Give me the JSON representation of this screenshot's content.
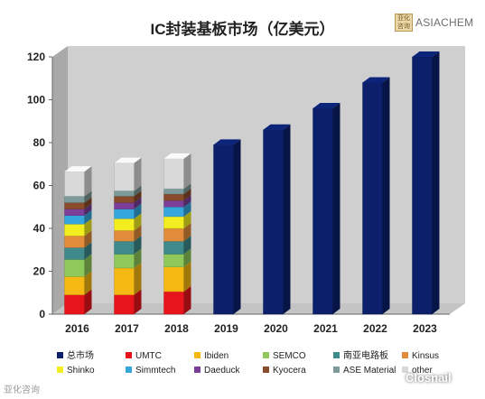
{
  "title": "IC封装基板市场（亿美元）",
  "logo": {
    "seal_text": "亚化咨询",
    "word": "ASIACHEM"
  },
  "watermarks": {
    "left": "亚化咨询",
    "right": "Closnail"
  },
  "chart_data": {
    "type": "bar",
    "stacked": true,
    "title": "IC封装基板市场（亿美元）",
    "categories": [
      "2016",
      "2017",
      "2018",
      "2019",
      "2020",
      "2021",
      "2022",
      "2023"
    ],
    "ylim": [
      0,
      120
    ],
    "yticks": [
      0,
      20,
      40,
      60,
      80,
      100,
      120
    ],
    "grid": false,
    "legend_position": "bottom",
    "series": [
      {
        "name": "总市场",
        "color": "#0b1f6b",
        "values": [
          null,
          null,
          null,
          79,
          86,
          96,
          108,
          120
        ]
      },
      {
        "name": "UMTC",
        "color": "#e8141c",
        "values": [
          9,
          9,
          10.5,
          null,
          null,
          null,
          null,
          null
        ]
      },
      {
        "name": "Ibiden",
        "color": "#f6b812",
        "values": [
          8.5,
          12.5,
          11.5,
          null,
          null,
          null,
          null,
          null
        ]
      },
      {
        "name": "SEMCO",
        "color": "#8fc95b",
        "values": [
          8,
          6.5,
          6,
          null,
          null,
          null,
          null,
          null
        ]
      },
      {
        "name": "南亚电路板",
        "color": "#3e8a8c",
        "values": [
          5.5,
          6,
          6,
          null,
          null,
          null,
          null,
          null
        ]
      },
      {
        "name": "Kinsus",
        "color": "#e08c3a",
        "values": [
          5.5,
          5,
          6,
          null,
          null,
          null,
          null,
          null
        ]
      },
      {
        "name": "Shinko",
        "color": "#f3ee20",
        "values": [
          5.5,
          5.5,
          5.5,
          null,
          null,
          null,
          null,
          null
        ]
      },
      {
        "name": "Simmtech",
        "color": "#35a7dd",
        "values": [
          4,
          4.5,
          4.5,
          null,
          null,
          null,
          null,
          null
        ]
      },
      {
        "name": "Daeduck",
        "color": "#7b3f9a",
        "values": [
          3,
          3,
          3,
          null,
          null,
          null,
          null,
          null
        ]
      },
      {
        "name": "Kyocera",
        "color": "#8a4b2a",
        "values": [
          3,
          3,
          3,
          null,
          null,
          null,
          null,
          null
        ]
      },
      {
        "name": "ASE Material",
        "color": "#7c9a9a",
        "values": [
          3,
          2.5,
          2.5,
          null,
          null,
          null,
          null,
          null
        ]
      },
      {
        "name": "other",
        "color": "#d9d9d9",
        "values": [
          11.5,
          13,
          14,
          null,
          null,
          null,
          null,
          null
        ]
      }
    ]
  }
}
